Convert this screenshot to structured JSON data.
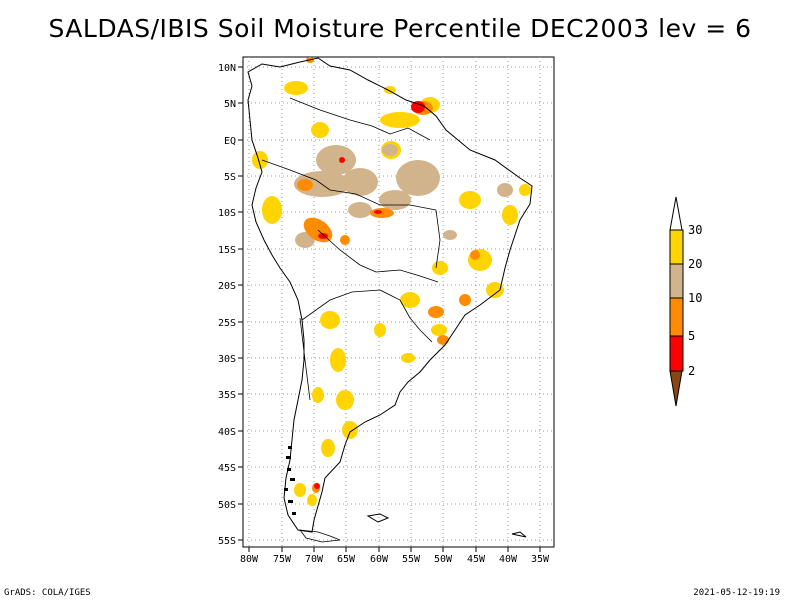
{
  "title": "SALDAS/IBIS Soil Moisture Percentile DEC2003 lev = 6",
  "footer": {
    "left": "GrADS: COLA/IGES",
    "right": "2021-05-12-19:19"
  },
  "map": {
    "lat_labels": [
      "10N",
      "5N",
      "EQ",
      "5S",
      "10S",
      "15S",
      "20S",
      "25S",
      "30S",
      "35S",
      "40S",
      "45S",
      "50S",
      "55S"
    ],
    "lon_labels": [
      "80W",
      "75W",
      "70W",
      "65W",
      "60W",
      "55W",
      "50W",
      "45W",
      "40W",
      "35W"
    ]
  },
  "legend": {
    "labels": [
      "30",
      "20",
      "10",
      "5",
      "2"
    ],
    "colors": {
      "above30": "#ffffff",
      "c20_30": "#ffd400",
      "c10_20": "#d2b48c",
      "c5_10": "#ff8c00",
      "c2_5": "#ff0000",
      "below2": "#8b4513"
    }
  }
}
